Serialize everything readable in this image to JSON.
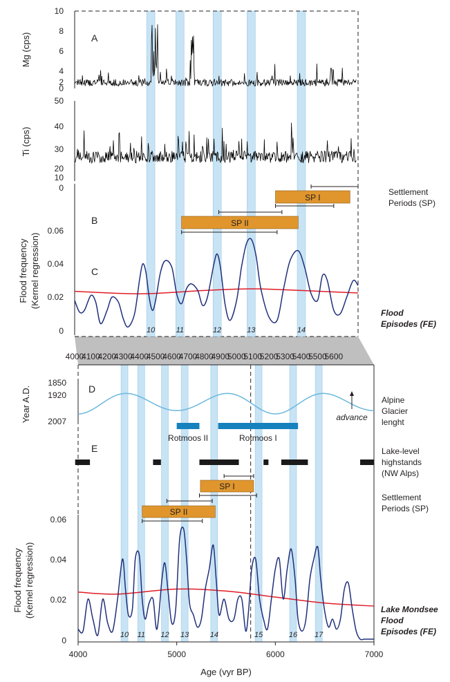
{
  "chart_data": [
    {
      "panel": "A",
      "type": "line",
      "label": "A",
      "ylabel": "Mg (cps)",
      "ylim": [
        0,
        10
      ],
      "yticks": [
        "0",
        "2",
        "4",
        "6",
        "8",
        "10"
      ],
      "xlim": [
        4000,
        5750
      ],
      "color": "#000000",
      "series": [
        {
          "values": "high-frequency XRF counts (noise-like signal, peaks near 4480 and 4760 yr BP)"
        }
      ]
    },
    {
      "panel": "Ti",
      "type": "line",
      "ylabel": "Ti (cps)",
      "ylim": [
        10,
        50
      ],
      "yticks": [
        "10",
        "20",
        "30",
        "40",
        "50"
      ],
      "xlim": [
        4000,
        5750
      ],
      "color": "#000000",
      "series": [
        {
          "values": "high-frequency XRF counts, baseline ~20-25 cps"
        }
      ]
    },
    {
      "panel": "B-C",
      "type": "line",
      "ylabel_lines": [
        "Flood frequency",
        "(Kernel regression)"
      ],
      "ylim": [
        0,
        0.075
      ],
      "yticks": [
        "0",
        "0.02",
        "0.04",
        "0.06"
      ],
      "top_tick": "0",
      "xlim": [
        4000,
        5750
      ],
      "xticks": [
        "4000",
        "4100",
        "4200",
        "4300",
        "4400",
        "4500",
        "4600",
        "4700",
        "4800",
        "4900",
        "5000",
        "5100",
        "5200",
        "5300",
        "5400",
        "5500",
        "5600"
      ],
      "labels": {
        "B": "B",
        "C": "C"
      },
      "settlement_bars": [
        {
          "label": "SP I",
          "start": 5240,
          "end": 5700,
          "err": [
            5460,
            5750
          ]
        },
        {
          "label": "SP II",
          "start": 4660,
          "end": 5380,
          "err": [
            4660,
            5250
          ]
        }
      ],
      "extra_errbars": [
        [
          4890,
          5280
        ],
        [
          5240,
          5600
        ]
      ],
      "flood_series": {
        "x": [
          4000,
          4030,
          4060,
          4100,
          4130,
          4160,
          4200,
          4230,
          4270,
          4300,
          4330,
          4370,
          4400,
          4420,
          4440,
          4460,
          4480,
          4500,
          4530,
          4560,
          4600,
          4630,
          4660,
          4690,
          4720,
          4760,
          4790,
          4820,
          4860,
          4880,
          4900,
          4930,
          4960,
          5000,
          5030,
          5060,
          5090,
          5120,
          5150,
          5200,
          5250,
          5290,
          5330,
          5380,
          5420,
          5460,
          5500,
          5530,
          5560,
          5600,
          5640,
          5680,
          5720,
          5750
        ],
        "y": [
          0.018,
          0.011,
          0.012,
          0.021,
          0.017,
          0.004,
          0.012,
          0.02,
          0.017,
          0.007,
          0.002,
          0.01,
          0.03,
          0.04,
          0.035,
          0.02,
          0.012,
          0.018,
          0.035,
          0.042,
          0.038,
          0.022,
          0.016,
          0.025,
          0.028,
          0.024,
          0.015,
          0.02,
          0.04,
          0.046,
          0.038,
          0.015,
          0.006,
          0.018,
          0.038,
          0.052,
          0.055,
          0.045,
          0.025,
          0.008,
          0.006,
          0.025,
          0.042,
          0.048,
          0.038,
          0.022,
          0.018,
          0.033,
          0.03,
          0.012,
          0.01,
          0.02,
          0.03,
          0.027
        ]
      },
      "trend_series": {
        "x": [
          4000,
          4400,
          4800,
          5100,
          5400,
          5750
        ],
        "y": [
          0.0235,
          0.022,
          0.024,
          0.025,
          0.024,
          0.0225
        ]
      },
      "flood_episodes": [
        {
          "label": "10",
          "x": 4470
        },
        {
          "label": "11",
          "x": 4650
        },
        {
          "label": "12",
          "x": 4880
        },
        {
          "label": "13",
          "x": 5090
        },
        {
          "label": "14",
          "x": 5400
        }
      ]
    },
    {
      "panel": "D",
      "type": "line",
      "label": "D",
      "ylabel": "Year A.D.",
      "yticks": [
        "1850",
        "1920",
        "2007"
      ],
      "xlim": [
        4000,
        7000
      ],
      "series": [
        {
          "name": "Alpine Glacier lenght",
          "values": "sinusoidal glacier length curve, advances near 4000, 5050, 5800, 6800 yr BP"
        }
      ],
      "rotmoos": [
        {
          "label": "Rotmoos II",
          "start": 5000,
          "end": 5230
        },
        {
          "label": "Rotmoos I",
          "start": 5420,
          "end": 6230
        }
      ],
      "annotation": "advance"
    },
    {
      "panel": "E",
      "type": "bar",
      "label": "E",
      "lake_level_highstands": [
        [
          3970,
          4120
        ],
        [
          4760,
          4840
        ],
        [
          5230,
          5630
        ],
        [
          5880,
          5930
        ],
        [
          6060,
          6330
        ],
        [
          6860,
          7000
        ]
      ],
      "settlement_bars": [
        {
          "label": "SP I",
          "start": 5240,
          "end": 5780,
          "err": [
            5480,
            5780
          ]
        },
        {
          "label": "SP II",
          "start": 4650,
          "end": 5390,
          "err": [
            4650,
            5260
          ]
        }
      ],
      "extra_errbars": [
        [
          4900,
          5360
        ],
        [
          5230,
          5810
        ]
      ]
    },
    {
      "panel": "Lake Mondsee",
      "type": "line",
      "ylabel_lines": [
        "Flood frequency",
        "(Kernel regression)"
      ],
      "xlabel": "Age (vyr BP)",
      "ylim": [
        0,
        0.065
      ],
      "yticks": [
        "0",
        "0.02",
        "0.04",
        "0.06"
      ],
      "xlim": [
        4000,
        7000
      ],
      "xticks": [
        "4000",
        "5000",
        "6000",
        "7000"
      ],
      "flood_series": {
        "x": [
          4000,
          4050,
          4100,
          4150,
          4200,
          4250,
          4300,
          4350,
          4400,
          4450,
          4480,
          4510,
          4550,
          4580,
          4620,
          4650,
          4680,
          4720,
          4760,
          4800,
          4850,
          4880,
          4910,
          4950,
          4990,
          5030,
          5070,
          5100,
          5130,
          5170,
          5210,
          5250,
          5290,
          5330,
          5370,
          5400,
          5430,
          5480,
          5530,
          5580,
          5620,
          5660,
          5700,
          5730,
          5760,
          5800,
          5840,
          5880,
          5920,
          5960,
          6000,
          6040,
          6080,
          6120,
          6160,
          6200,
          6230,
          6270,
          6310,
          6350,
          6390,
          6430,
          6460,
          6500,
          6540,
          6580,
          6620,
          6660,
          6700,
          6740,
          6780,
          6820,
          6860,
          6900,
          6950,
          7000
        ],
        "y": [
          0.005,
          0.004,
          0.02,
          0.01,
          0.002,
          0.02,
          0.008,
          0.004,
          0.02,
          0.04,
          0.025,
          0.012,
          0.015,
          0.04,
          0.042,
          0.02,
          0.01,
          0.018,
          0.02,
          0.005,
          0.03,
          0.038,
          0.025,
          0.008,
          0.015,
          0.05,
          0.055,
          0.04,
          0.018,
          0.012,
          0.006,
          0.01,
          0.025,
          0.035,
          0.047,
          0.03,
          0.012,
          0.02,
          0.01,
          0.01,
          0.02,
          0.02,
          0.004,
          0.015,
          0.035,
          0.04,
          0.02,
          0.01,
          0.005,
          0.02,
          0.035,
          0.04,
          0.02,
          0.035,
          0.045,
          0.03,
          0.01,
          0.004,
          0.01,
          0.03,
          0.04,
          0.046,
          0.03,
          0.014,
          0.006,
          0.01,
          0.005,
          0.01,
          0.025,
          0.028,
          0.015,
          0.004,
          0.0,
          0.0,
          0.0,
          0.0
        ]
      },
      "trend_series": {
        "x": [
          4000,
          4400,
          5000,
          5500,
          6000,
          6500,
          7000
        ],
        "y": [
          0.0235,
          0.0225,
          0.025,
          0.024,
          0.021,
          0.018,
          0.0165
        ]
      },
      "flood_episodes": [
        {
          "label": "10",
          "x": 4470
        },
        {
          "label": "11",
          "x": 4640
        },
        {
          "label": "12",
          "x": 4880
        },
        {
          "label": "13",
          "x": 5080
        },
        {
          "label": "14",
          "x": 5380
        },
        {
          "label": "15",
          "x": 5830
        },
        {
          "label": "16",
          "x": 6180
        },
        {
          "label": "17",
          "x": 6440
        }
      ]
    }
  ],
  "side_labels": {
    "settlement_top": [
      "Settlement",
      "Periods (SP)"
    ],
    "flood_episodes_top": [
      "Flood",
      "Episodes (FE)"
    ],
    "alpine": [
      "Alpine",
      "Glacier",
      "lenght"
    ],
    "lake_level": [
      "Lake-level",
      "highstands",
      "(NW Alps)"
    ],
    "settlement_bottom": [
      "Settlement",
      "Periods (SP)"
    ],
    "mondsee": [
      "Lake Mondsee",
      "Flood",
      "Episodes (FE)"
    ]
  },
  "colors": {
    "band": "#c7e3f4",
    "band_edge": "#8fc4e4",
    "flood_line": "#1f2f7a",
    "trend_line": "#e01b24",
    "glacier_line": "#6ab7dd",
    "rotmoos_bar": "#1581bd",
    "sp_bar": "#e0962d",
    "highstand_bar": "#1a1a1a",
    "zoom_fill": "#bfbfbf"
  }
}
